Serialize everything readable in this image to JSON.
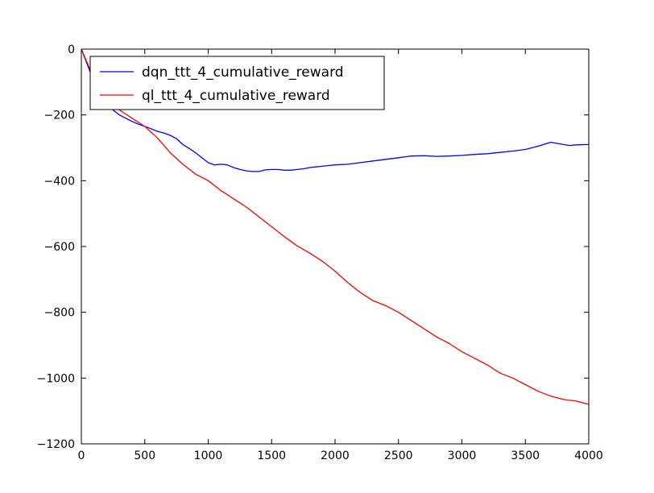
{
  "chart_data": {
    "type": "line",
    "title": "",
    "xlabel": "",
    "ylabel": "",
    "xlim": [
      0,
      4000
    ],
    "ylim": [
      -1200,
      0
    ],
    "xticks": [
      0,
      500,
      1000,
      1500,
      2000,
      2500,
      3000,
      3500,
      4000
    ],
    "xtick_labels": [
      "0",
      "500",
      "1000",
      "1500",
      "2000",
      "2500",
      "3000",
      "3500",
      "4000"
    ],
    "yticks": [
      0,
      -200,
      -400,
      -600,
      -800,
      -1000,
      -1200
    ],
    "ytick_labels": [
      "0",
      "−200",
      "−400",
      "−600",
      "−800",
      "−1000",
      "−1200"
    ],
    "grid": false,
    "legend_position": "upper-left",
    "series": [
      {
        "name": "dqn_ttt_4_cumulative_reward",
        "color": "#0000ff",
        "x": [
          0,
          50,
          100,
          150,
          200,
          250,
          300,
          350,
          400,
          450,
          500,
          550,
          600,
          650,
          700,
          750,
          800,
          850,
          900,
          950,
          1000,
          1050,
          1100,
          1150,
          1200,
          1250,
          1300,
          1350,
          1400,
          1450,
          1500,
          1550,
          1600,
          1650,
          1700,
          1750,
          1800,
          1850,
          1900,
          1950,
          2000,
          2100,
          2200,
          2300,
          2400,
          2500,
          2600,
          2700,
          2800,
          2900,
          3000,
          3100,
          3200,
          3300,
          3400,
          3500,
          3600,
          3700,
          3800,
          3850,
          3900,
          4000
        ],
        "values": [
          0,
          -50,
          -100,
          -140,
          -170,
          -185,
          -200,
          -210,
          -220,
          -228,
          -235,
          -242,
          -250,
          -255,
          -262,
          -272,
          -290,
          -302,
          -315,
          -330,
          -345,
          -352,
          -350,
          -352,
          -360,
          -366,
          -370,
          -372,
          -372,
          -367,
          -366,
          -366,
          -368,
          -368,
          -366,
          -364,
          -360,
          -358,
          -356,
          -354,
          -352,
          -350,
          -345,
          -340,
          -335,
          -330,
          -325,
          -324,
          -326,
          -325,
          -323,
          -320,
          -318,
          -314,
          -310,
          -305,
          -295,
          -283,
          -290,
          -293,
          -291,
          -290
        ]
      },
      {
        "name": "ql_ttt_4_cumulative_reward",
        "color": "#ff0000",
        "x": [
          0,
          50,
          100,
          150,
          200,
          250,
          300,
          400,
          500,
          600,
          700,
          800,
          900,
          1000,
          1100,
          1200,
          1300,
          1400,
          1500,
          1600,
          1700,
          1800,
          1900,
          2000,
          2100,
          2200,
          2300,
          2400,
          2500,
          2600,
          2700,
          2800,
          2900,
          3000,
          3100,
          3200,
          3300,
          3400,
          3500,
          3600,
          3700,
          3800,
          3900,
          4000
        ],
        "values": [
          0,
          -45,
          -90,
          -130,
          -160,
          -175,
          -185,
          -210,
          -235,
          -270,
          -315,
          -350,
          -380,
          -400,
          -430,
          -455,
          -480,
          -510,
          -540,
          -570,
          -598,
          -620,
          -645,
          -675,
          -710,
          -740,
          -765,
          -780,
          -800,
          -825,
          -850,
          -875,
          -895,
          -920,
          -940,
          -960,
          -985,
          -1000,
          -1020,
          -1040,
          -1055,
          -1065,
          -1070,
          -1080
        ]
      }
    ]
  }
}
